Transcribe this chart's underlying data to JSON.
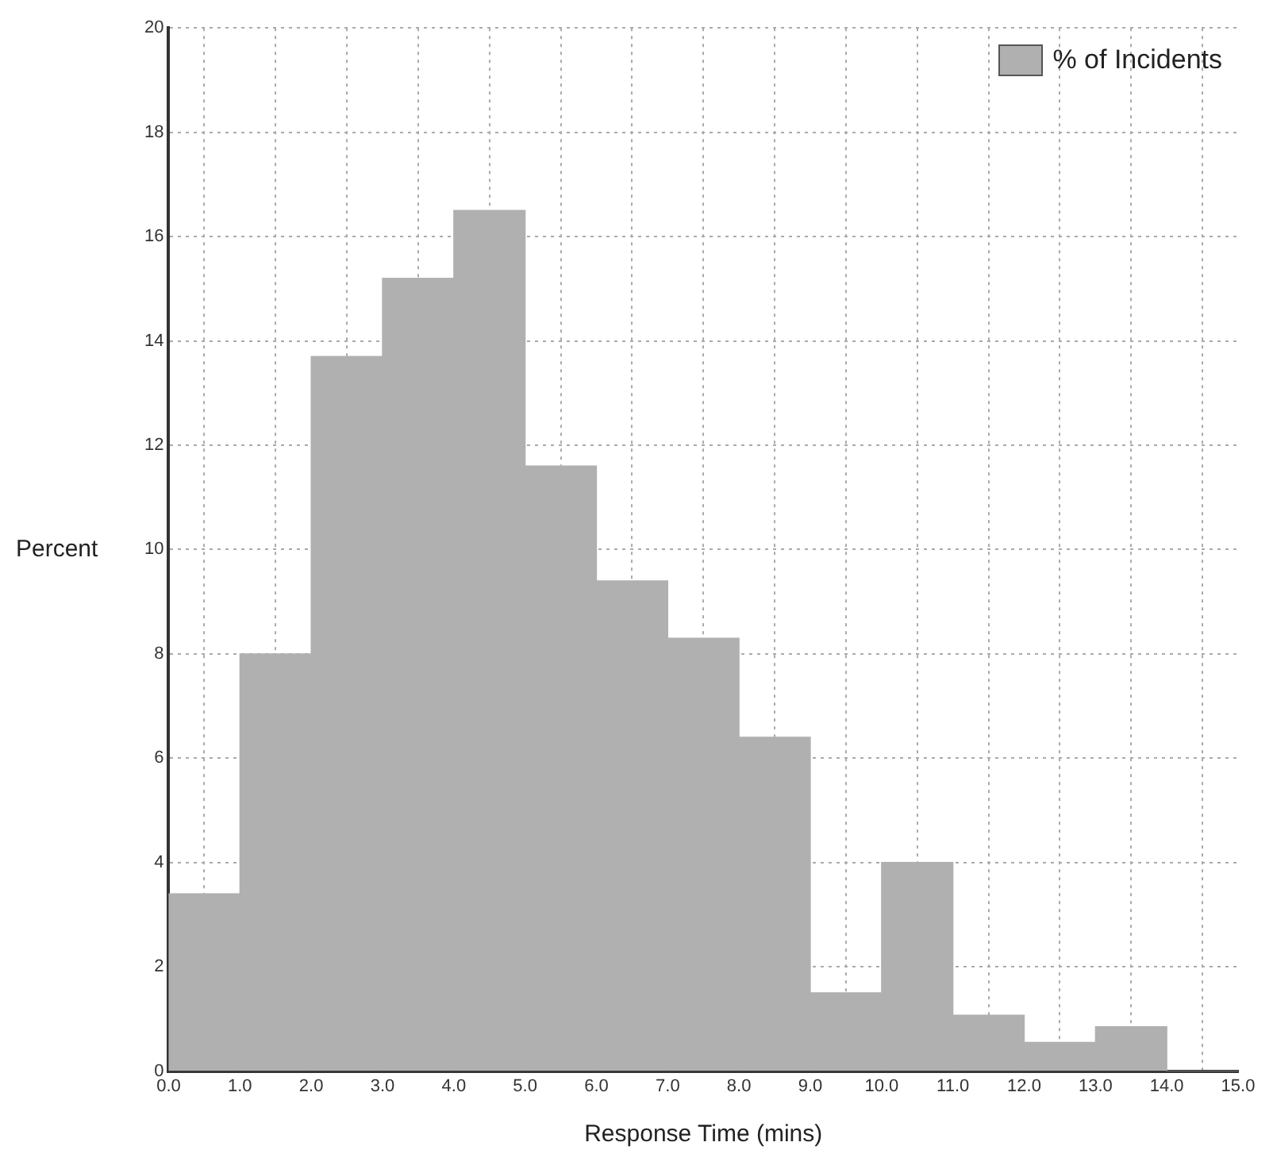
{
  "chart_data": {
    "type": "histogram",
    "xlabel": "Response Time (mins)",
    "ylabel": "Percent",
    "bins": [
      0,
      1,
      2,
      3,
      4,
      5,
      6,
      7,
      8,
      9,
      10,
      11,
      12,
      13,
      14,
      15
    ],
    "series": [
      {
        "name": "% of Incidents",
        "color": "#b0b0b0",
        "values": [
          3.4,
          8.0,
          13.7,
          15.2,
          16.5,
          11.6,
          9.4,
          8.3,
          6.4,
          1.5,
          4.0,
          1.07,
          0.55,
          0.85,
          0
        ]
      }
    ],
    "xlim": [
      0,
      15
    ],
    "xticks": [
      {
        "value": 0,
        "label": "0.0"
      },
      {
        "value": 1,
        "label": "1.0"
      },
      {
        "value": 2,
        "label": "2.0"
      },
      {
        "value": 3,
        "label": "3.0"
      },
      {
        "value": 4,
        "label": "4.0"
      },
      {
        "value": 5,
        "label": "5.0"
      },
      {
        "value": 6,
        "label": "6.0"
      },
      {
        "value": 7,
        "label": "7.0"
      },
      {
        "value": 8,
        "label": "8.0"
      },
      {
        "value": 9,
        "label": "9.0"
      },
      {
        "value": 10,
        "label": "10.0"
      },
      {
        "value": 11,
        "label": "11.0"
      },
      {
        "value": 12,
        "label": "12.0"
      },
      {
        "value": 13,
        "label": "13.0"
      },
      {
        "value": 14,
        "label": "14.0"
      },
      {
        "value": 15,
        "label": "15.0"
      }
    ],
    "ylim": [
      0,
      20
    ],
    "yticks": [
      0,
      2,
      4,
      6,
      8,
      10,
      12,
      14,
      16,
      18,
      20
    ],
    "grid": true,
    "legend": "top right"
  }
}
